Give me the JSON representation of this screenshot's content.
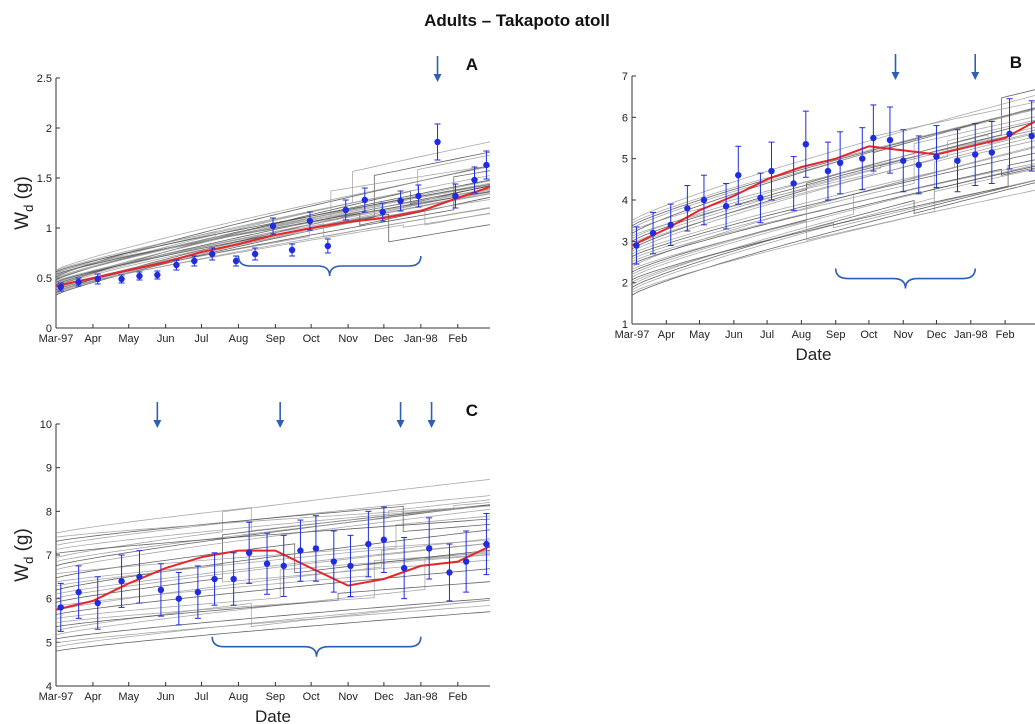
{
  "figure": {
    "title": "Adults – Takapoto atoll",
    "accent": "#2d5fb5",
    "mean_color": "#e8262a",
    "obs_color": "#1f2ce0",
    "ensemble_color": "#6e6e6e"
  },
  "chart_data": [
    {
      "type": "line",
      "panel": "A",
      "ylabel": "W",
      "ylabel_sub": "d",
      "ylabel_unit": " (g)",
      "xlabel": "",
      "ylim": [
        0,
        2.5
      ],
      "yticks": [
        0,
        0.5,
        1,
        1.5,
        2,
        2.5
      ],
      "ytick_labels": [
        "0",
        "0.5",
        "1",
        "1.5",
        "2",
        "2.5"
      ],
      "xlim": [
        "1997-03-01",
        "1998-02-28"
      ],
      "xticks": [
        "1997-03-01",
        "1997-04-01",
        "1997-05-01",
        "1997-06-01",
        "1997-07-01",
        "1997-08-01",
        "1997-09-01",
        "1997-10-01",
        "1997-11-01",
        "1997-12-01",
        "1998-01-01",
        "1998-02-01"
      ],
      "xtick_labels": [
        "Mar-97",
        "Apr",
        "May",
        "Jun",
        "Jul",
        "Aug",
        "Sep",
        "Oct",
        "Nov",
        "Dec",
        "Jan-98",
        "Feb"
      ],
      "observations": [
        {
          "x": "1997-03-05",
          "y": 0.41,
          "err": 0.04
        },
        {
          "x": "1997-03-20",
          "y": 0.46,
          "err": 0.04
        },
        {
          "x": "1997-04-05",
          "y": 0.49,
          "err": 0.05
        },
        {
          "x": "1997-04-25",
          "y": 0.49,
          "err": 0.04
        },
        {
          "x": "1997-05-10",
          "y": 0.52,
          "err": 0.04
        },
        {
          "x": "1997-05-25",
          "y": 0.53,
          "err": 0.04
        },
        {
          "x": "1997-06-10",
          "y": 0.63,
          "err": 0.05
        },
        {
          "x": "1997-06-25",
          "y": 0.67,
          "err": 0.05
        },
        {
          "x": "1997-07-10",
          "y": 0.74,
          "err": 0.06
        },
        {
          "x": "1997-07-30",
          "y": 0.67,
          "err": 0.05
        },
        {
          "x": "1997-08-15",
          "y": 0.74,
          "err": 0.06
        },
        {
          "x": "1997-08-30",
          "y": 1.02,
          "err": 0.08
        },
        {
          "x": "1997-09-15",
          "y": 0.78,
          "err": 0.06
        },
        {
          "x": "1997-09-30",
          "y": 1.07,
          "err": 0.09
        },
        {
          "x": "1997-10-15",
          "y": 0.82,
          "err": 0.07
        },
        {
          "x": "1997-10-30",
          "y": 1.18,
          "err": 0.1
        },
        {
          "x": "1997-11-15",
          "y": 1.28,
          "err": 0.12
        },
        {
          "x": "1997-11-30",
          "y": 1.16,
          "err": 0.09
        },
        {
          "x": "1997-12-15",
          "y": 1.27,
          "err": 0.1
        },
        {
          "x": "1997-12-30",
          "y": 1.32,
          "err": 0.11
        },
        {
          "x": "1998-01-15",
          "y": 1.86,
          "err": 0.18
        },
        {
          "x": "1998-01-30",
          "y": 1.32,
          "err": 0.12
        },
        {
          "x": "1998-02-15",
          "y": 1.48,
          "err": 0.13
        },
        {
          "x": "1998-02-25",
          "y": 1.63,
          "err": 0.14
        }
      ],
      "mean_curve": {
        "x": [
          "1997-03-01",
          "1997-04-01",
          "1997-05-01",
          "1997-06-01",
          "1997-07-01",
          "1997-08-01",
          "1997-09-01",
          "1997-10-01",
          "1997-11-01",
          "1997-12-01",
          "1998-01-01",
          "1998-02-01",
          "1998-02-28"
        ],
        "y": [
          0.42,
          0.5,
          0.58,
          0.66,
          0.76,
          0.84,
          0.93,
          1.0,
          1.06,
          1.1,
          1.17,
          1.3,
          1.41
        ]
      },
      "ensemble": {
        "count": 30,
        "y_start_range": [
          0.33,
          0.58
        ],
        "growth_range": [
          0.75,
          1.15
        ]
      },
      "arrows": [
        "1998-01-15"
      ],
      "brace": {
        "from": "1997-08-01",
        "to": "1998-01-01",
        "y": 0.62
      }
    },
    {
      "type": "line",
      "panel": "B",
      "ylabel": "",
      "ylabel_sub": "",
      "ylabel_unit": "",
      "xlabel": "Date",
      "ylim": [
        1,
        7
      ],
      "yticks": [
        1,
        2,
        3,
        4,
        5,
        6,
        7
      ],
      "ytick_labels": [
        "1",
        "2",
        "3",
        "4",
        "5",
        "6",
        "7"
      ],
      "xlim": [
        "1997-03-01",
        "1998-02-28"
      ],
      "xticks": [
        "1997-03-01",
        "1997-04-01",
        "1997-05-01",
        "1997-06-01",
        "1997-07-01",
        "1997-08-01",
        "1997-09-01",
        "1997-10-01",
        "1997-11-01",
        "1997-12-01",
        "1998-01-01",
        "1998-02-01"
      ],
      "xtick_labels": [
        "Mar-97",
        "Apr",
        "May",
        "Jun",
        "Jul",
        "Aug",
        "Sep",
        "Oct",
        "Nov",
        "Dec",
        "Jan-98",
        "Feb"
      ],
      "observations": [
        {
          "x": "1997-03-05",
          "y": 2.9,
          "err": 0.45
        },
        {
          "x": "1997-03-20",
          "y": 3.2,
          "err": 0.5
        },
        {
          "x": "1997-04-05",
          "y": 3.4,
          "err": 0.5
        },
        {
          "x": "1997-04-20",
          "y": 3.8,
          "err": 0.55
        },
        {
          "x": "1997-05-05",
          "y": 4.0,
          "err": 0.6
        },
        {
          "x": "1997-05-25",
          "y": 3.85,
          "err": 0.55
        },
        {
          "x": "1997-06-05",
          "y": 4.6,
          "err": 0.7
        },
        {
          "x": "1997-06-25",
          "y": 4.05,
          "err": 0.6
        },
        {
          "x": "1997-07-05",
          "y": 4.7,
          "err": 0.7
        },
        {
          "x": "1997-07-25",
          "y": 4.4,
          "err": 0.65
        },
        {
          "x": "1997-08-05",
          "y": 5.35,
          "err": 0.8
        },
        {
          "x": "1997-08-25",
          "y": 4.7,
          "err": 0.7
        },
        {
          "x": "1997-09-05",
          "y": 4.9,
          "err": 0.75
        },
        {
          "x": "1997-09-25",
          "y": 5.0,
          "err": 0.75
        },
        {
          "x": "1997-10-05",
          "y": 5.5,
          "err": 0.8
        },
        {
          "x": "1997-10-20",
          "y": 5.45,
          "err": 0.8
        },
        {
          "x": "1997-11-01",
          "y": 4.95,
          "err": 0.75
        },
        {
          "x": "1997-11-15",
          "y": 4.85,
          "err": 0.7
        },
        {
          "x": "1997-12-01",
          "y": 5.05,
          "err": 0.75
        },
        {
          "x": "1997-12-20",
          "y": 4.95,
          "err": 0.75
        },
        {
          "x": "1998-01-05",
          "y": 5.1,
          "err": 0.75
        },
        {
          "x": "1998-01-20",
          "y": 5.15,
          "err": 0.75
        },
        {
          "x": "1998-02-05",
          "y": 5.6,
          "err": 0.85
        },
        {
          "x": "1998-02-25",
          "y": 5.55,
          "err": 0.85
        }
      ],
      "mean_curve": {
        "x": [
          "1997-03-01",
          "1997-04-01",
          "1997-05-01",
          "1997-06-01",
          "1997-07-01",
          "1997-08-01",
          "1997-09-01",
          "1997-10-01",
          "1997-11-01",
          "1997-12-01",
          "1998-01-01",
          "1998-02-01",
          "1998-02-28"
        ],
        "y": [
          2.9,
          3.3,
          3.75,
          4.1,
          4.5,
          4.8,
          5.0,
          5.3,
          5.2,
          5.1,
          5.3,
          5.5,
          5.9
        ]
      },
      "ensemble": {
        "count": 30,
        "y_start_range": [
          1.7,
          3.5
        ],
        "growth_range": [
          2.3,
          3.1
        ]
      },
      "arrows": [
        "1997-10-25",
        "1998-01-05"
      ],
      "brace": {
        "from": "1997-09-01",
        "to": "1998-01-05",
        "y": 2.1
      }
    },
    {
      "type": "line",
      "panel": "C",
      "ylabel": "W",
      "ylabel_sub": "d",
      "ylabel_unit": " (g)",
      "xlabel": "Date",
      "ylim": [
        4,
        10
      ],
      "yticks": [
        4,
        5,
        6,
        7,
        8,
        9,
        10
      ],
      "ytick_labels": [
        "4",
        "5",
        "6",
        "7",
        "8",
        "9",
        "10"
      ],
      "xlim": [
        "1997-03-01",
        "1998-02-28"
      ],
      "xticks": [
        "1997-03-01",
        "1997-04-01",
        "1997-05-01",
        "1997-06-01",
        "1997-07-01",
        "1997-08-01",
        "1997-09-01",
        "1997-10-01",
        "1997-11-01",
        "1997-12-01",
        "1998-01-01",
        "1998-02-01"
      ],
      "xtick_labels": [
        "Mar-97",
        "Apr",
        "May",
        "Jun",
        "Jul",
        "Aug",
        "Sep",
        "Oct",
        "Nov",
        "Dec",
        "Jan-98",
        "Feb"
      ],
      "observations": [
        {
          "x": "1997-03-05",
          "y": 5.8,
          "err": 0.55
        },
        {
          "x": "1997-03-20",
          "y": 6.15,
          "err": 0.6
        },
        {
          "x": "1997-04-05",
          "y": 5.9,
          "err": 0.6
        },
        {
          "x": "1997-04-25",
          "y": 6.4,
          "err": 0.6
        },
        {
          "x": "1997-05-10",
          "y": 6.5,
          "err": 0.6
        },
        {
          "x": "1997-05-28",
          "y": 6.2,
          "err": 0.6
        },
        {
          "x": "1997-06-12",
          "y": 6.0,
          "err": 0.6
        },
        {
          "x": "1997-06-28",
          "y": 6.15,
          "err": 0.6
        },
        {
          "x": "1997-07-12",
          "y": 6.45,
          "err": 0.6
        },
        {
          "x": "1997-07-28",
          "y": 6.45,
          "err": 0.6
        },
        {
          "x": "1997-08-10",
          "y": 7.05,
          "err": 0.7
        },
        {
          "x": "1997-08-25",
          "y": 6.8,
          "err": 0.7
        },
        {
          "x": "1997-09-08",
          "y": 6.75,
          "err": 0.7
        },
        {
          "x": "1997-09-22",
          "y": 7.1,
          "err": 0.7
        },
        {
          "x": "1997-10-05",
          "y": 7.15,
          "err": 0.75
        },
        {
          "x": "1997-10-20",
          "y": 6.85,
          "err": 0.7
        },
        {
          "x": "1997-11-03",
          "y": 6.75,
          "err": 0.7
        },
        {
          "x": "1997-11-18",
          "y": 7.25,
          "err": 0.75
        },
        {
          "x": "1997-12-01",
          "y": 7.35,
          "err": 0.75
        },
        {
          "x": "1997-12-18",
          "y": 6.7,
          "err": 0.7
        },
        {
          "x": "1998-01-08",
          "y": 7.15,
          "err": 0.7
        },
        {
          "x": "1998-01-25",
          "y": 6.6,
          "err": 0.65
        },
        {
          "x": "1998-02-08",
          "y": 6.85,
          "err": 0.7
        },
        {
          "x": "1998-02-25",
          "y": 7.25,
          "err": 0.7
        }
      ],
      "mean_curve": {
        "x": [
          "1997-03-01",
          "1997-04-01",
          "1997-05-01",
          "1997-06-01",
          "1997-07-01",
          "1997-08-01",
          "1997-09-01",
          "1997-10-01",
          "1997-11-01",
          "1997-12-01",
          "1998-01-01",
          "1998-02-01",
          "1998-02-28"
        ],
        "y": [
          5.75,
          5.95,
          6.35,
          6.7,
          6.95,
          7.1,
          7.1,
          6.7,
          6.3,
          6.45,
          6.75,
          6.85,
          7.2
        ]
      },
      "ensemble": {
        "count": 30,
        "y_start_range": [
          4.8,
          7.5
        ],
        "growth_range": [
          0.7,
          1.4
        ]
      },
      "arrows": [
        "1997-05-25",
        "1997-09-05",
        "1997-12-15",
        "1998-01-10"
      ],
      "brace": {
        "from": "1997-07-10",
        "to": "1998-01-01",
        "y": 4.9
      }
    }
  ]
}
